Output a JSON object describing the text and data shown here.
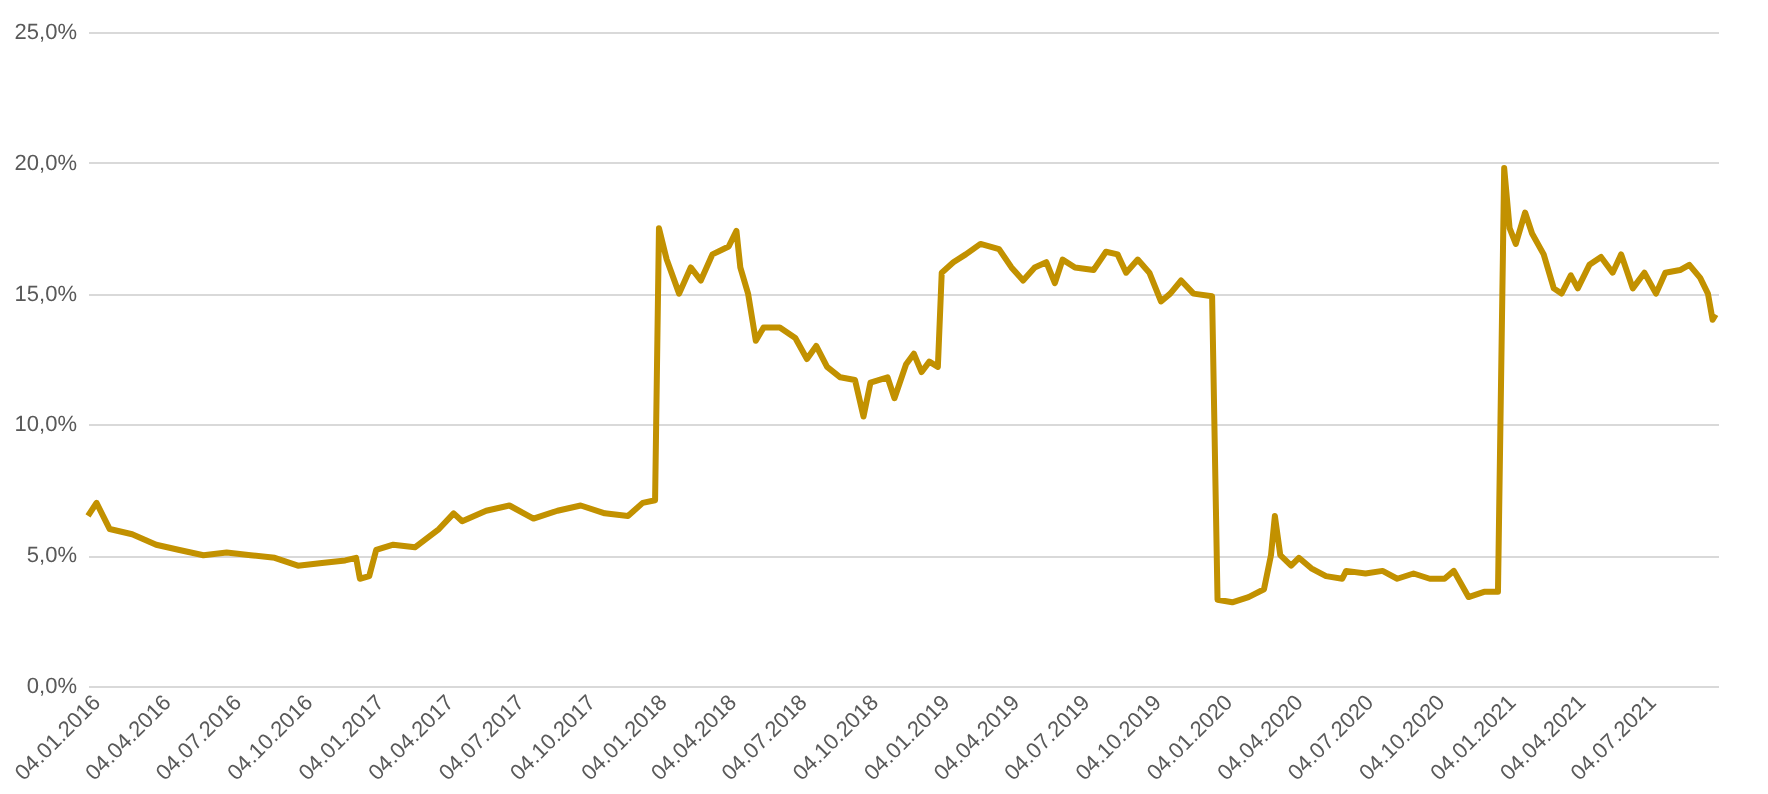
{
  "chart_data": {
    "type": "line",
    "color": "#c29100",
    "grid": "y",
    "marker": "none",
    "line_style": "solid",
    "ylim": [
      0,
      25
    ],
    "yticks": [
      {
        "value": 0,
        "label": "0,0%"
      },
      {
        "value": 5,
        "label": "5,0%"
      },
      {
        "value": 10,
        "label": "10,0%"
      },
      {
        "value": 15,
        "label": "15,0%"
      },
      {
        "value": 20,
        "label": "20,0%"
      },
      {
        "value": 25,
        "label": "25,0%"
      }
    ],
    "xlim": [
      "2016-01-04",
      "2021-10-08"
    ],
    "xticks": [
      {
        "value": "2016-01-04",
        "label": "04.01.2016"
      },
      {
        "value": "2016-04-04",
        "label": "04.04.2016"
      },
      {
        "value": "2016-07-04",
        "label": "04.07.2016"
      },
      {
        "value": "2016-10-04",
        "label": "04.10.2016"
      },
      {
        "value": "2017-01-04",
        "label": "04.01.2017"
      },
      {
        "value": "2017-04-04",
        "label": "04.04.2017"
      },
      {
        "value": "2017-07-04",
        "label": "04.07.2017"
      },
      {
        "value": "2017-10-04",
        "label": "04.10.2017"
      },
      {
        "value": "2018-01-04",
        "label": "04.01.2018"
      },
      {
        "value": "2018-04-04",
        "label": "04.04.2018"
      },
      {
        "value": "2018-07-04",
        "label": "04.07.2018"
      },
      {
        "value": "2018-10-04",
        "label": "04.10.2018"
      },
      {
        "value": "2019-01-04",
        "label": "04.01.2019"
      },
      {
        "value": "2019-04-04",
        "label": "04.04.2019"
      },
      {
        "value": "2019-07-04",
        "label": "04.07.2019"
      },
      {
        "value": "2019-10-04",
        "label": "04.10.2019"
      },
      {
        "value": "2020-01-04",
        "label": "04.01.2020"
      },
      {
        "value": "2020-04-04",
        "label": "04.04.2020"
      },
      {
        "value": "2020-07-04",
        "label": "04.07.2020"
      },
      {
        "value": "2020-10-04",
        "label": "04.10.2020"
      },
      {
        "value": "2021-01-04",
        "label": "04.01.2021"
      },
      {
        "value": "2021-04-04",
        "label": "04.04.2021"
      },
      {
        "value": "2021-07-04",
        "label": "04.07.2021"
      }
    ],
    "x": [
      "2016-01-04",
      "2016-01-15",
      "2016-02-01",
      "2016-03-01",
      "2016-04-01",
      "2016-05-01",
      "2016-06-01",
      "2016-07-01",
      "2016-08-01",
      "2016-09-01",
      "2016-10-01",
      "2016-11-01",
      "2016-12-01",
      "2016-12-15",
      "2016-12-20",
      "2017-01-01",
      "2017-01-10",
      "2017-02-01",
      "2017-03-01",
      "2017-04-01",
      "2017-04-20",
      "2017-05-01",
      "2017-06-01",
      "2017-07-01",
      "2017-08-01",
      "2017-09-01",
      "2017-10-01",
      "2017-11-01",
      "2017-12-01",
      "2017-12-20",
      "2018-01-05",
      "2018-01-10",
      "2018-01-20",
      "2018-02-05",
      "2018-02-20",
      "2018-03-05",
      "2018-03-20",
      "2018-04-10",
      "2018-04-20",
      "2018-04-25",
      "2018-05-05",
      "2018-05-15",
      "2018-05-25",
      "2018-06-15",
      "2018-07-05",
      "2018-07-20",
      "2018-08-01",
      "2018-08-15",
      "2018-09-01",
      "2018-09-20",
      "2018-10-01",
      "2018-10-10",
      "2018-11-01",
      "2018-11-10",
      "2018-11-25",
      "2018-12-05",
      "2018-12-15",
      "2018-12-25",
      "2019-01-05",
      "2019-01-10",
      "2019-01-25",
      "2019-02-10",
      "2019-03-01",
      "2019-03-25",
      "2019-04-10",
      "2019-04-25",
      "2019-05-10",
      "2019-05-25",
      "2019-06-05",
      "2019-06-15",
      "2019-07-01",
      "2019-07-25",
      "2019-08-10",
      "2019-08-25",
      "2019-09-05",
      "2019-09-20",
      "2019-10-05",
      "2019-10-20",
      "2019-11-01",
      "2019-11-15",
      "2019-12-01",
      "2019-12-25",
      "2020-01-01",
      "2020-01-20",
      "2020-02-10",
      "2020-03-01",
      "2020-03-10",
      "2020-03-15",
      "2020-03-22",
      "2020-04-05",
      "2020-04-15",
      "2020-05-01",
      "2020-05-20",
      "2020-06-10",
      "2020-06-15",
      "2020-07-10",
      "2020-08-01",
      "2020-08-20",
      "2020-09-10",
      "2020-10-01",
      "2020-10-20",
      "2020-11-01",
      "2020-11-20",
      "2020-12-10",
      "2020-12-28",
      "2021-01-05",
      "2021-01-12",
      "2021-01-20",
      "2021-02-01",
      "2021-02-10",
      "2021-02-25",
      "2021-03-10",
      "2021-03-20",
      "2021-04-01",
      "2021-04-10",
      "2021-04-25",
      "2021-05-10",
      "2021-05-25",
      "2021-06-05",
      "2021-06-20",
      "2021-07-05",
      "2021-07-20",
      "2021-08-01",
      "2021-08-20",
      "2021-09-01",
      "2021-09-15",
      "2021-09-25",
      "2021-10-01",
      "2021-10-05"
    ],
    "values": [
      6.5,
      7.0,
      6.0,
      5.8,
      5.4,
      5.2,
      5.0,
      5.1,
      5.0,
      4.9,
      4.6,
      4.7,
      4.8,
      4.9,
      4.1,
      4.2,
      5.2,
      5.4,
      5.3,
      6.0,
      6.6,
      6.3,
      6.7,
      6.9,
      6.4,
      6.7,
      6.9,
      6.6,
      6.5,
      7.0,
      7.1,
      17.5,
      16.3,
      15.0,
      16.0,
      15.5,
      16.5,
      16.8,
      17.4,
      16.0,
      15.0,
      13.2,
      13.7,
      13.7,
      13.3,
      12.5,
      13.0,
      12.2,
      11.8,
      11.7,
      10.3,
      11.6,
      11.8,
      11.0,
      12.3,
      12.7,
      12.0,
      12.4,
      12.2,
      15.8,
      16.2,
      16.5,
      16.9,
      16.7,
      16.0,
      15.5,
      16.0,
      16.2,
      15.4,
      16.3,
      16.0,
      15.9,
      16.6,
      16.5,
      15.8,
      16.3,
      15.8,
      14.7,
      15.0,
      15.5,
      15.0,
      14.9,
      3.3,
      3.2,
      3.4,
      3.7,
      5.0,
      6.5,
      5.0,
      4.6,
      4.9,
      4.5,
      4.2,
      4.1,
      4.4,
      4.3,
      4.4,
      4.1,
      4.3,
      4.1,
      4.1,
      4.4,
      3.4,
      3.6,
      3.6,
      19.8,
      17.5,
      16.9,
      18.1,
      17.3,
      16.5,
      15.2,
      15.0,
      15.7,
      15.2,
      16.1,
      16.4,
      15.8,
      16.5,
      15.2,
      15.8,
      15.0,
      15.8,
      15.9,
      16.1,
      15.6,
      15.0,
      14.0,
      14.2
    ]
  }
}
